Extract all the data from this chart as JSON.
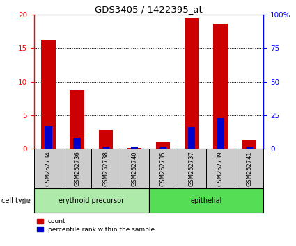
{
  "title": "GDS3405 / 1422395_at",
  "samples": [
    "GSM252734",
    "GSM252736",
    "GSM252738",
    "GSM252740",
    "GSM252735",
    "GSM252737",
    "GSM252739",
    "GSM252741"
  ],
  "count_values": [
    16.3,
    8.7,
    2.8,
    0.1,
    1.0,
    19.5,
    18.7,
    1.4
  ],
  "percentile_values": [
    16.5,
    8.5,
    1.5,
    1.5,
    1.5,
    16.0,
    23.0,
    1.5
  ],
  "bar_color_red": "#CC0000",
  "bar_color_blue": "#0000CC",
  "ylim_left": [
    0,
    20
  ],
  "ylim_right": [
    0,
    100
  ],
  "yticks_left": [
    0,
    5,
    10,
    15,
    20
  ],
  "yticks_right": [
    0,
    25,
    50,
    75,
    100
  ],
  "ytick_labels_right": [
    "0",
    "25",
    "50",
    "75",
    "100%"
  ],
  "erythroid_color": "#aeeaaa",
  "epithelial_color": "#55dd55",
  "xlabel_bg": "#cccccc",
  "bar_width": 0.5,
  "blue_bar_width": 0.25
}
